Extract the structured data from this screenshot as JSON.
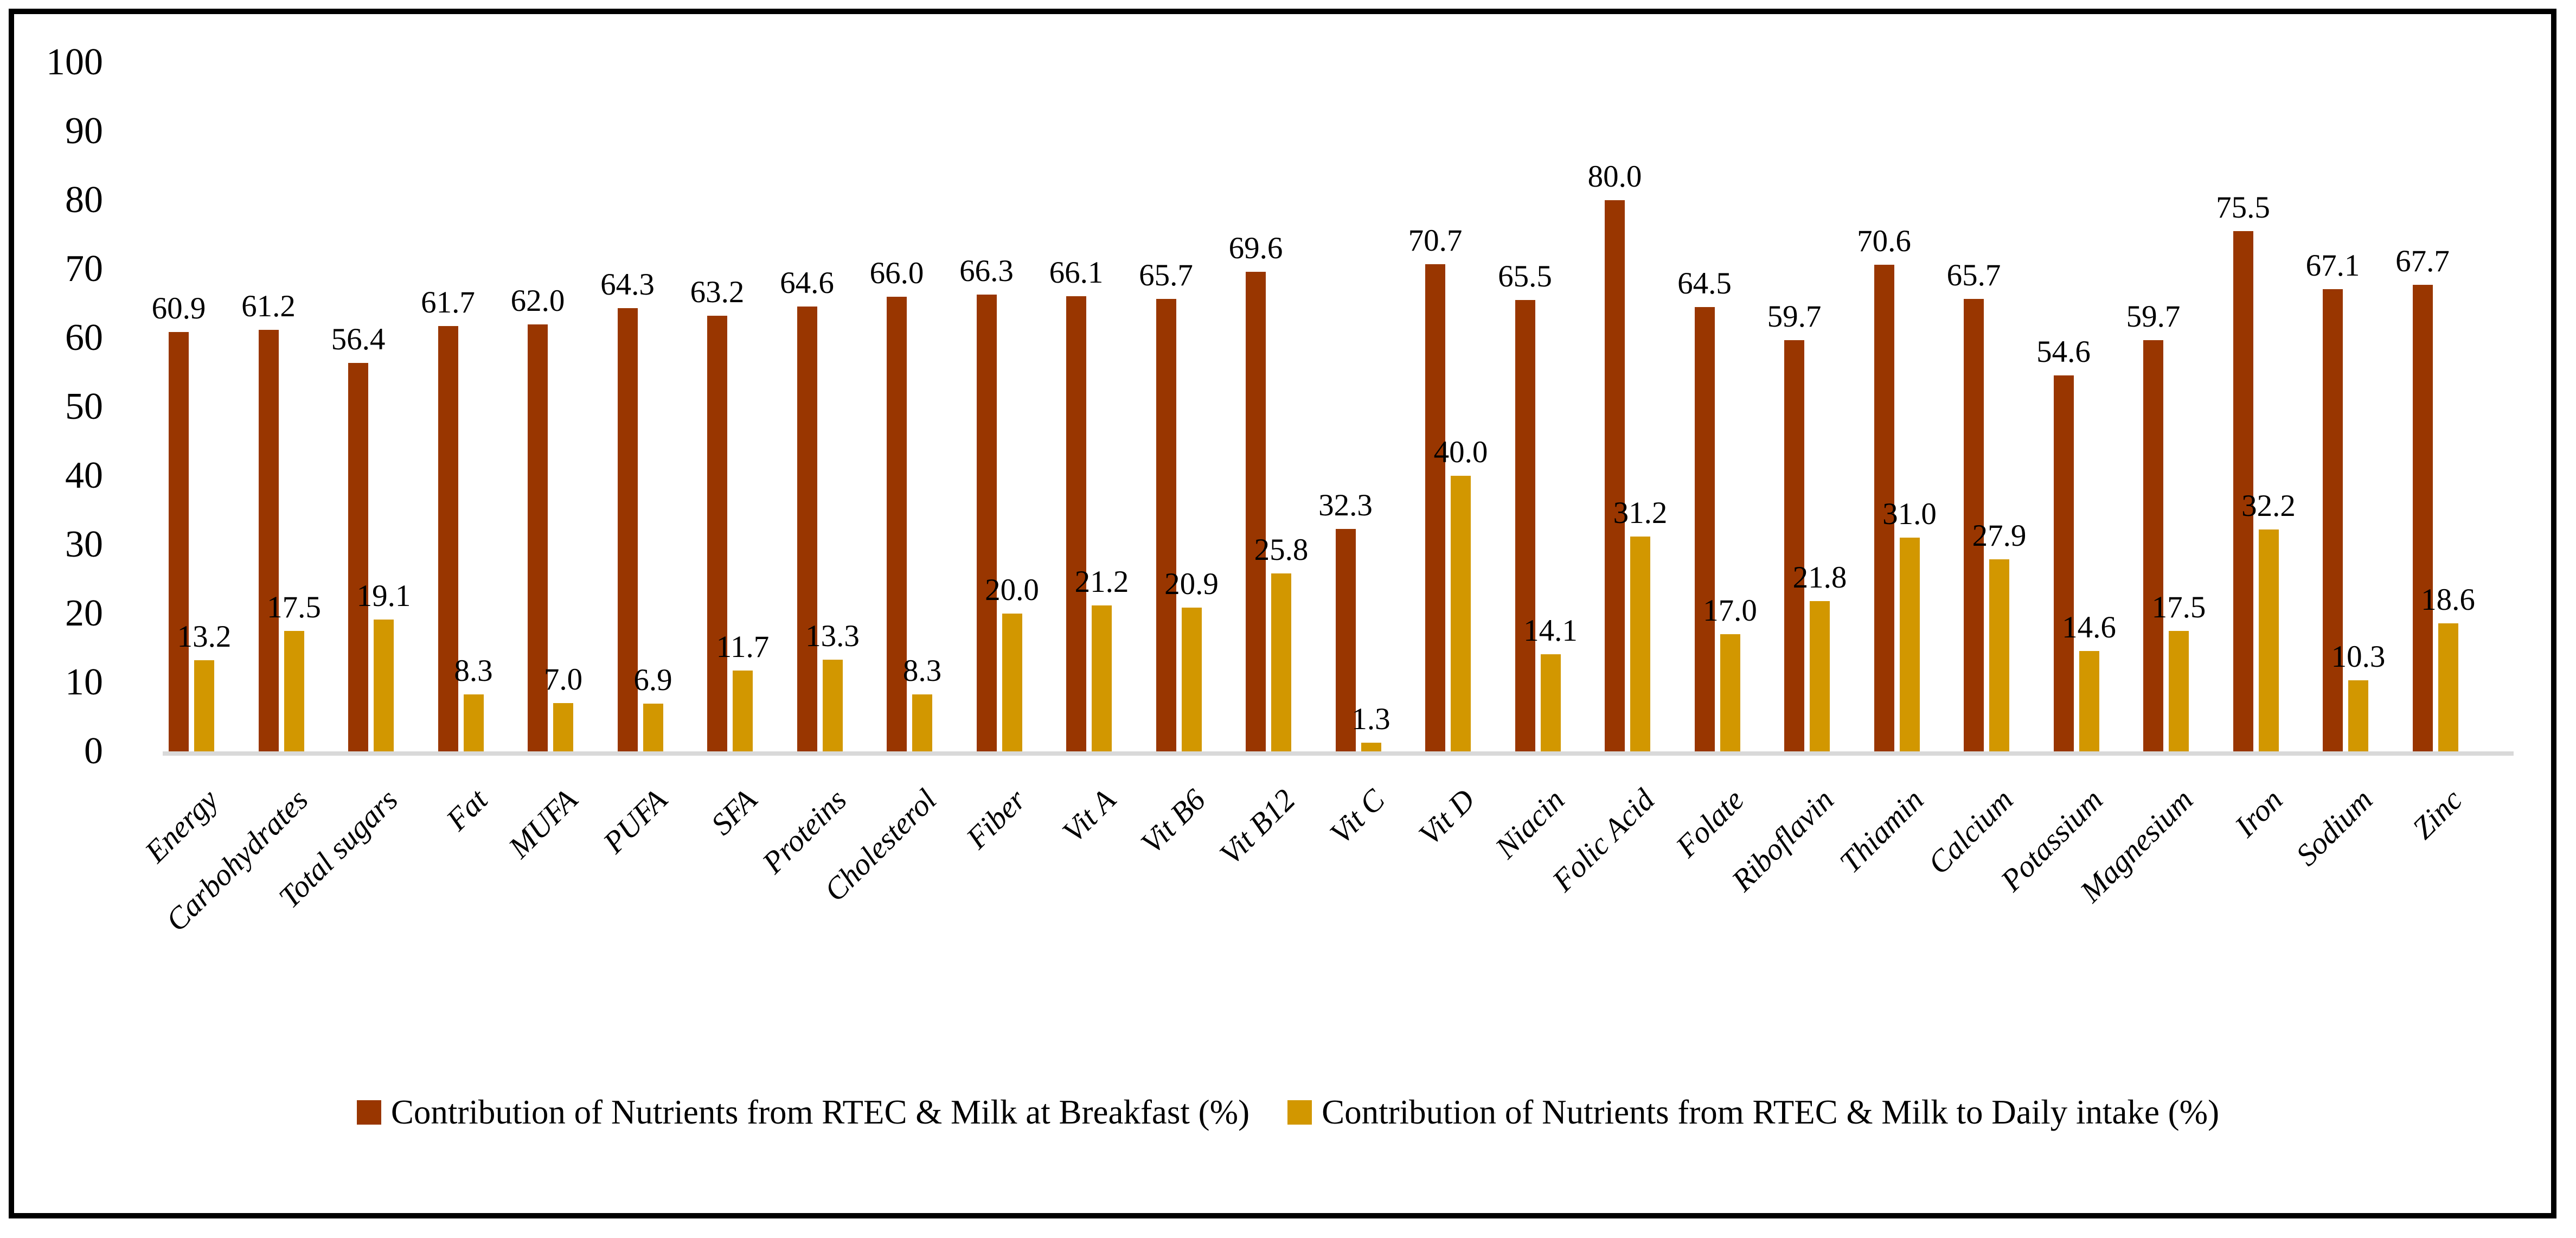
{
  "frame": {
    "border_color": "#000000",
    "background": "#FFFFFF"
  },
  "chart_data": {
    "type": "bar",
    "title": "",
    "xlabel": "",
    "ylabel": "",
    "categories": [
      "Energy",
      "Carbohydrates",
      "Total sugars",
      "Fat",
      "MUFA",
      "PUFA",
      "SFA",
      "Proteins",
      "Cholesterol",
      "Fiber",
      "Vit A",
      "Vit B6",
      "Vit B12",
      "Vit C",
      "Vit D",
      "Niacin",
      "Folic Acid",
      "Folate",
      "Riboflavin",
      "Thiamin",
      "Calcium",
      "Potassium",
      "Magnesium",
      "Iron",
      "Sodium",
      "Zinc"
    ],
    "series": [
      {
        "name": "Contribution of Nutrients from RTEC & Milk at Breakfast (%)",
        "color": "#993600",
        "values": [
          60.9,
          61.2,
          56.4,
          61.7,
          62.0,
          64.3,
          63.2,
          64.6,
          66.0,
          66.3,
          66.1,
          65.7,
          69.6,
          32.3,
          70.7,
          65.5,
          80.0,
          64.5,
          59.7,
          70.6,
          65.7,
          54.6,
          59.7,
          75.5,
          67.1,
          67.7
        ]
      },
      {
        "name": "Contribution of Nutrients from RTEC & Milk to Daily intake (%)",
        "color": "#D29700",
        "values": [
          13.2,
          17.5,
          19.1,
          8.3,
          7.0,
          6.9,
          11.7,
          13.3,
          8.3,
          20.0,
          21.2,
          20.9,
          25.8,
          1.3,
          40.0,
          14.1,
          31.2,
          17.0,
          21.8,
          31.0,
          27.9,
          14.6,
          17.5,
          32.2,
          10.3,
          18.6
        ]
      }
    ],
    "ylim": [
      0,
      100
    ],
    "ytick_step": 10,
    "yticks": [
      0,
      10,
      20,
      30,
      40,
      50,
      60,
      70,
      80,
      90,
      100
    ],
    "grid": "off",
    "legend_position": "bottom",
    "value_label_format": "one-decimal",
    "value_labels_shown": true,
    "axis_baseline_color": "#D9D9D9",
    "text_color": "#000000"
  }
}
